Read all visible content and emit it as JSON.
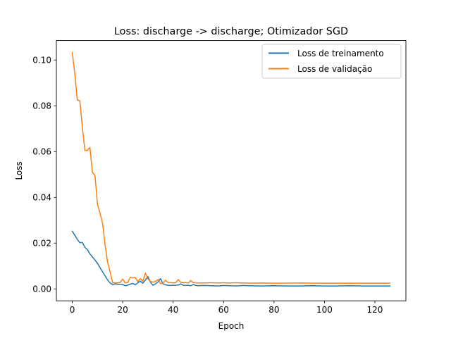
{
  "chart_data": {
    "type": "line",
    "title": "Loss: discharge -> discharge; Otimizador SGD",
    "xlabel": "Epoch",
    "ylabel": "Loss",
    "xlim": [
      -6.3,
      132.3
    ],
    "ylim": [
      -0.0052,
      0.1085
    ],
    "xticks": [
      0,
      20,
      40,
      60,
      80,
      100,
      120
    ],
    "xtick_labels": [
      "0",
      "20",
      "40",
      "60",
      "80",
      "100",
      "120"
    ],
    "yticks": [
      0.0,
      0.02,
      0.04,
      0.06,
      0.08,
      0.1
    ],
    "ytick_labels": [
      "0.00",
      "0.02",
      "0.04",
      "0.06",
      "0.08",
      "0.10"
    ],
    "grid": false,
    "legend_position": "top-right",
    "series": [
      {
        "name": "Loss de treinamento",
        "color": "#1f77b4",
        "points": [
          [
            0,
            0.0252
          ],
          [
            1,
            0.0235
          ],
          [
            2,
            0.0216
          ],
          [
            3,
            0.0202
          ],
          [
            4,
            0.0203
          ],
          [
            5,
            0.0182
          ],
          [
            6,
            0.0172
          ],
          [
            7,
            0.0153
          ],
          [
            8,
            0.014
          ],
          [
            9,
            0.0126
          ],
          [
            10,
            0.0112
          ],
          [
            11,
            0.0093
          ],
          [
            12,
            0.0075
          ],
          [
            13,
            0.0057
          ],
          [
            14,
            0.004
          ],
          [
            15,
            0.0026
          ],
          [
            16,
            0.0019
          ],
          [
            17,
            0.0022
          ],
          [
            18,
            0.002
          ],
          [
            19,
            0.0021
          ],
          [
            20,
            0.0019
          ],
          [
            21,
            0.0014
          ],
          [
            22,
            0.0016
          ],
          [
            23,
            0.0021
          ],
          [
            24,
            0.0024
          ],
          [
            25,
            0.0018
          ],
          [
            26,
            0.0027
          ],
          [
            27,
            0.0034
          ],
          [
            28,
            0.0025
          ],
          [
            29,
            0.0039
          ],
          [
            30,
            0.0054
          ],
          [
            31,
            0.003
          ],
          [
            32,
            0.0016
          ],
          [
            33,
            0.0022
          ],
          [
            34,
            0.0031
          ],
          [
            35,
            0.0045
          ],
          [
            36,
            0.0022
          ],
          [
            37,
            0.0018
          ],
          [
            38,
            0.0016
          ],
          [
            39,
            0.0015
          ],
          [
            40,
            0.0016
          ],
          [
            41,
            0.0016
          ],
          [
            42,
            0.0017
          ],
          [
            43,
            0.0022
          ],
          [
            44,
            0.0016
          ],
          [
            45,
            0.0015
          ],
          [
            46,
            0.0016
          ],
          [
            47,
            0.0014
          ],
          [
            48,
            0.0019
          ],
          [
            49,
            0.0015
          ],
          [
            50,
            0.0014
          ],
          [
            52,
            0.0015
          ],
          [
            55,
            0.0014
          ],
          [
            58,
            0.0013
          ],
          [
            60,
            0.0015
          ],
          [
            62,
            0.0014
          ],
          [
            65,
            0.0013
          ],
          [
            68,
            0.0015
          ],
          [
            70,
            0.0014
          ],
          [
            75,
            0.0013
          ],
          [
            80,
            0.0014
          ],
          [
            85,
            0.0013
          ],
          [
            90,
            0.0013
          ],
          [
            95,
            0.0014
          ],
          [
            100,
            0.0013
          ],
          [
            105,
            0.0013
          ],
          [
            110,
            0.0014
          ],
          [
            115,
            0.0013
          ],
          [
            120,
            0.0013
          ],
          [
            126,
            0.0013
          ]
        ]
      },
      {
        "name": "Loss de validação",
        "color": "#ff7f0e",
        "points": [
          [
            0,
            0.1033
          ],
          [
            1,
            0.0942
          ],
          [
            2,
            0.0825
          ],
          [
            3,
            0.0822
          ],
          [
            4,
            0.0707
          ],
          [
            5,
            0.0605
          ],
          [
            6,
            0.0605
          ],
          [
            7,
            0.0618
          ],
          [
            8,
            0.0508
          ],
          [
            9,
            0.0497
          ],
          [
            10,
            0.0369
          ],
          [
            11,
            0.0331
          ],
          [
            12,
            0.0287
          ],
          [
            13,
            0.0194
          ],
          [
            14,
            0.0117
          ],
          [
            15,
            0.0075
          ],
          [
            16,
            0.0027
          ],
          [
            17,
            0.0027
          ],
          [
            18,
            0.0026
          ],
          [
            19,
            0.0029
          ],
          [
            20,
            0.0043
          ],
          [
            21,
            0.0027
          ],
          [
            22,
            0.0028
          ],
          [
            23,
            0.0051
          ],
          [
            24,
            0.0048
          ],
          [
            25,
            0.005
          ],
          [
            26,
            0.0032
          ],
          [
            27,
            0.0045
          ],
          [
            28,
            0.0034
          ],
          [
            29,
            0.0069
          ],
          [
            30,
            0.0043
          ],
          [
            31,
            0.0033
          ],
          [
            32,
            0.003
          ],
          [
            33,
            0.0033
          ],
          [
            34,
            0.0041
          ],
          [
            35,
            0.0023
          ],
          [
            36,
            0.0025
          ],
          [
            37,
            0.0038
          ],
          [
            38,
            0.0028
          ],
          [
            39,
            0.0028
          ],
          [
            40,
            0.0026
          ],
          [
            41,
            0.0027
          ],
          [
            42,
            0.0041
          ],
          [
            43,
            0.0029
          ],
          [
            44,
            0.0027
          ],
          [
            45,
            0.0028
          ],
          [
            46,
            0.0025
          ],
          [
            47,
            0.0037
          ],
          [
            48,
            0.0027
          ],
          [
            49,
            0.0027
          ],
          [
            50,
            0.0026
          ],
          [
            52,
            0.0026
          ],
          [
            55,
            0.0027
          ],
          [
            58,
            0.0026
          ],
          [
            60,
            0.0027
          ],
          [
            62,
            0.0026
          ],
          [
            65,
            0.0027
          ],
          [
            68,
            0.0026
          ],
          [
            70,
            0.0025
          ],
          [
            75,
            0.0026
          ],
          [
            80,
            0.0025
          ],
          [
            85,
            0.0025
          ],
          [
            90,
            0.0026
          ],
          [
            95,
            0.0025
          ],
          [
            100,
            0.0025
          ],
          [
            105,
            0.0025
          ],
          [
            110,
            0.0025
          ],
          [
            115,
            0.0025
          ],
          [
            120,
            0.0025
          ],
          [
            126,
            0.0025
          ]
        ]
      }
    ]
  }
}
